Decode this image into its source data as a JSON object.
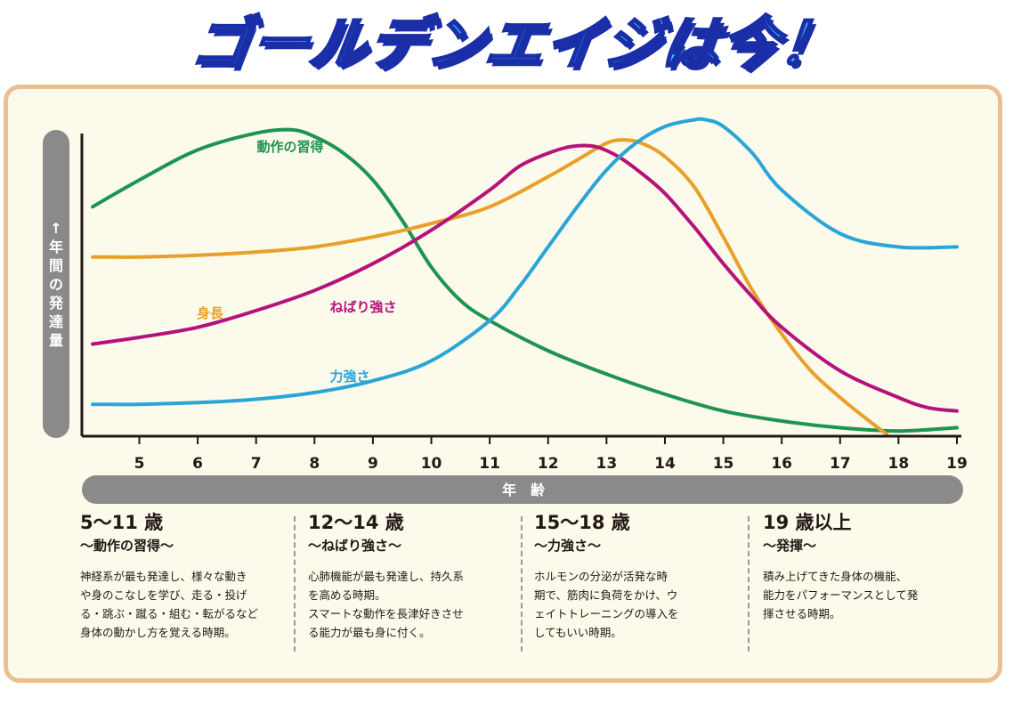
{
  "banner": {
    "title": "ゴールデンエイジは今！"
  },
  "chart_data": {
    "type": "line",
    "y_axis_label": [
      "↑",
      "年",
      "間",
      "の",
      "発",
      "達",
      "量"
    ],
    "x_axis_label": "年　齢",
    "x_ticks": [
      "5",
      "6",
      "7",
      "8",
      "9",
      "10",
      "11",
      "12",
      "13",
      "14",
      "15",
      "16",
      "17",
      "18",
      "19"
    ],
    "xlim": [
      4.2,
      19.0
    ],
    "ylim": [
      0,
      100
    ],
    "grid": false,
    "series": [
      {
        "name": "動作の習得",
        "color": "#1e9451",
        "x": [
          4.2,
          5,
          6,
          7,
          7.6,
          8,
          8.5,
          9,
          9.5,
          10,
          10.5,
          11,
          12,
          13,
          14,
          15,
          16,
          17,
          18,
          19
        ],
        "y": [
          68,
          76,
          85,
          90,
          91,
          89,
          84,
          76,
          64,
          50,
          40,
          34,
          25,
          18,
          12,
          7,
          4,
          2,
          1,
          2
        ]
      },
      {
        "name": "身長",
        "color": "#e8a02a",
        "x": [
          4.2,
          5,
          6,
          7,
          8,
          9,
          10,
          11,
          12,
          12.5,
          13,
          13.3,
          13.6,
          14,
          14.5,
          15,
          15.5,
          16,
          16.5,
          17,
          17.5,
          17.8
        ],
        "y": [
          53,
          53,
          53.5,
          54.5,
          56,
          59,
          63,
          68,
          77,
          82,
          87,
          88,
          87,
          83,
          74,
          59,
          43,
          30,
          19,
          11,
          4,
          0
        ]
      },
      {
        "name": "ねばり強さ",
        "color": "#b5127b",
        "x": [
          4.2,
          5,
          6,
          7,
          8,
          9,
          10,
          11,
          11.5,
          12,
          12.4,
          12.8,
          13.2,
          13.6,
          14,
          14.5,
          15,
          15.5,
          16,
          17,
          18,
          18.5,
          19
        ],
        "y": [
          27,
          29,
          32,
          37,
          43,
          51,
          61,
          73,
          80,
          84,
          86,
          86,
          83,
          78,
          72,
          62,
          51,
          41,
          32,
          19,
          11,
          8,
          7
        ]
      },
      {
        "name": "力強さ",
        "color": "#2aa5d8",
        "x": [
          4.2,
          5,
          6,
          7,
          8,
          9,
          10,
          11,
          11.5,
          12,
          12.5,
          13,
          13.5,
          14,
          14.5,
          14.7,
          15,
          15.5,
          16,
          17,
          18,
          19
        ],
        "y": [
          9,
          9,
          9.5,
          10.5,
          12.5,
          16,
          22,
          34,
          44,
          56,
          68,
          79,
          87,
          92,
          94,
          94,
          92,
          84,
          73,
          60,
          56,
          56
        ]
      }
    ]
  },
  "periods": [
    {
      "heading": "5〜11 歳",
      "subheading": "〜動作の習得〜",
      "body": "神経系が最も発達し、様々な動き\nや身のこなしを学び、走る・投げ\nる・跳ぶ・蹴る・組む・転がるなど\n身体の動かし方を覚える時期。"
    },
    {
      "heading": "12〜14 歳",
      "subheading": "〜ねばり強さ〜",
      "body": "心肺機能が最も発達し、持久系\nを高める時期。\nスマートな動作を長津好きさせ\nる能力が最も身に付く。"
    },
    {
      "heading": "15〜18 歳",
      "subheading": "〜力強さ〜",
      "body": "ホルモンの分泌が活発な時\n期で、筋肉に負荷をかけ、ウ\nェイトトレーニングの導入を\nしてもいい時期。"
    },
    {
      "heading": "19 歳以上",
      "subheading": "〜発揮〜",
      "body": "積み上げてきた身体の機能、\n能力をパフォーマンスとして発\n揮させる時期。"
    }
  ]
}
